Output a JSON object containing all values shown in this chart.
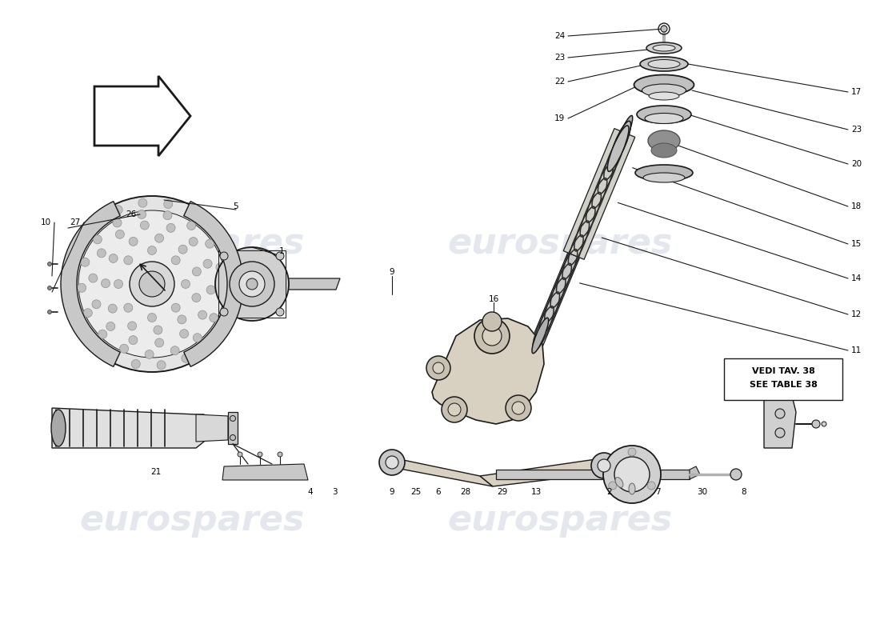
{
  "bg_color": "#ffffff",
  "watermark_text": "eurospares",
  "watermark_color": "#b8c4d4",
  "watermark_alpha": 0.38,
  "line_color": "#1a1a1a",
  "label_fontsize": 7.5
}
